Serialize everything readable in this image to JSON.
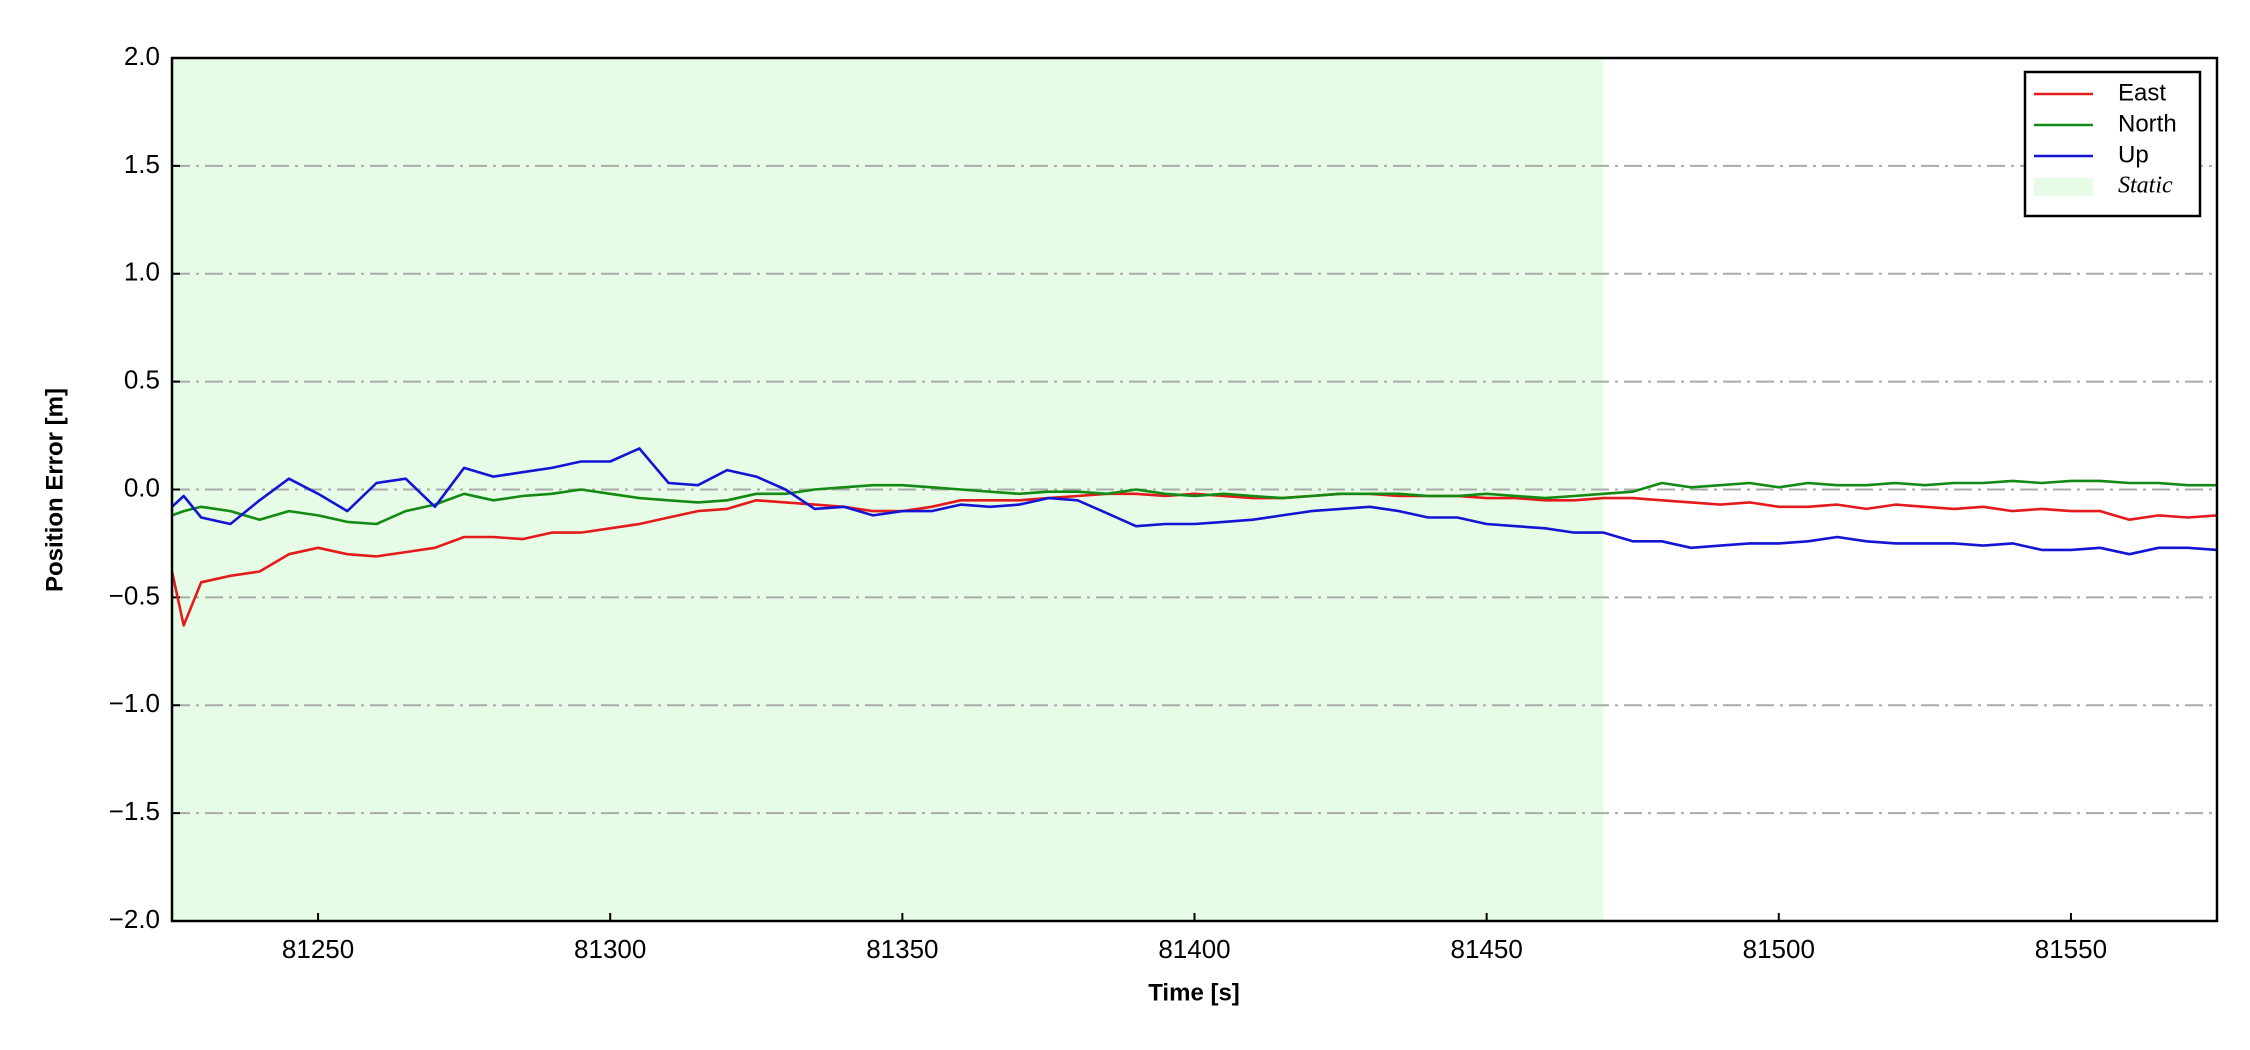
{
  "chart_data": {
    "type": "line",
    "xlabel": "Time [s]",
    "ylabel": "Position Error [m]",
    "xlim": [
      81225,
      81575
    ],
    "xticks": [
      81250,
      81300,
      81350,
      81400,
      81450,
      81500,
      81550
    ],
    "ylim": [
      -2.0,
      2.0
    ],
    "yticks": [
      {
        "value": -2.0,
        "label": "−2.0"
      },
      {
        "value": -1.5,
        "label": "−1.5"
      },
      {
        "value": -1.0,
        "label": "−1.0"
      },
      {
        "value": -0.5,
        "label": "−0.5"
      },
      {
        "value": 0.0,
        "label": "0.0"
      },
      {
        "value": 0.5,
        "label": "0.5"
      },
      {
        "value": 1.0,
        "label": "1.0"
      },
      {
        "value": 1.5,
        "label": "1.5"
      },
      {
        "value": 2.0,
        "label": "2.0"
      }
    ],
    "grid": true,
    "legend": "upper right",
    "static_region": {
      "label": "Static",
      "xrange": [
        81225,
        81470
      ],
      "color": "#e6fce6"
    },
    "x": [
      81225,
      81227,
      81230,
      81235,
      81240,
      81245,
      81250,
      81255,
      81260,
      81265,
      81270,
      81275,
      81280,
      81285,
      81290,
      81295,
      81300,
      81305,
      81310,
      81315,
      81320,
      81325,
      81330,
      81335,
      81340,
      81345,
      81350,
      81355,
      81360,
      81365,
      81370,
      81375,
      81380,
      81385,
      81390,
      81395,
      81400,
      81405,
      81410,
      81415,
      81420,
      81425,
      81430,
      81435,
      81440,
      81445,
      81450,
      81455,
      81460,
      81465,
      81470,
      81475,
      81480,
      81485,
      81490,
      81495,
      81500,
      81505,
      81510,
      81515,
      81520,
      81525,
      81530,
      81535,
      81540,
      81545,
      81550,
      81555,
      81560,
      81565,
      81570,
      81575
    ],
    "series": [
      {
        "name": "East",
        "color": "#e41a1c",
        "values": [
          -0.38,
          -0.63,
          -0.43,
          -0.4,
          -0.38,
          -0.3,
          -0.27,
          -0.3,
          -0.31,
          -0.29,
          -0.27,
          -0.22,
          -0.22,
          -0.23,
          -0.2,
          -0.2,
          -0.18,
          -0.16,
          -0.13,
          -0.1,
          -0.09,
          -0.05,
          -0.06,
          -0.07,
          -0.08,
          -0.1,
          -0.1,
          -0.08,
          -0.05,
          -0.05,
          -0.05,
          -0.04,
          -0.03,
          -0.02,
          -0.02,
          -0.03,
          -0.02,
          -0.03,
          -0.04,
          -0.04,
          -0.03,
          -0.02,
          -0.02,
          -0.03,
          -0.03,
          -0.03,
          -0.04,
          -0.04,
          -0.05,
          -0.05,
          -0.04,
          -0.04,
          -0.05,
          -0.06,
          -0.07,
          -0.06,
          -0.08,
          -0.08,
          -0.07,
          -0.09,
          -0.07,
          -0.08,
          -0.09,
          -0.08,
          -0.1,
          -0.09,
          -0.1,
          -0.1,
          -0.14,
          -0.12,
          -0.13,
          -0.12
        ]
      },
      {
        "name": "North",
        "color": "#138a13",
        "values": [
          -0.12,
          -0.1,
          -0.08,
          -0.1,
          -0.14,
          -0.1,
          -0.12,
          -0.15,
          -0.16,
          -0.1,
          -0.07,
          -0.02,
          -0.05,
          -0.03,
          -0.02,
          0.0,
          -0.02,
          -0.04,
          -0.05,
          -0.06,
          -0.05,
          -0.02,
          -0.02,
          0.0,
          0.01,
          0.02,
          0.02,
          0.01,
          0.0,
          -0.01,
          -0.02,
          -0.01,
          -0.01,
          -0.02,
          0.0,
          -0.02,
          -0.03,
          -0.02,
          -0.03,
          -0.04,
          -0.03,
          -0.02,
          -0.02,
          -0.02,
          -0.03,
          -0.03,
          -0.02,
          -0.03,
          -0.04,
          -0.03,
          -0.02,
          -0.01,
          0.03,
          0.01,
          0.02,
          0.03,
          0.01,
          0.03,
          0.02,
          0.02,
          0.03,
          0.02,
          0.03,
          0.03,
          0.04,
          0.03,
          0.04,
          0.04,
          0.03,
          0.03,
          0.02,
          0.02
        ]
      },
      {
        "name": "Up",
        "color": "#1414d4",
        "values": [
          -0.08,
          -0.03,
          -0.13,
          -0.16,
          -0.05,
          0.05,
          -0.02,
          -0.1,
          0.03,
          0.05,
          -0.08,
          0.1,
          0.06,
          0.08,
          0.1,
          0.13,
          0.13,
          0.19,
          0.03,
          0.02,
          0.09,
          0.06,
          0.0,
          -0.09,
          -0.08,
          -0.12,
          -0.1,
          -0.1,
          -0.07,
          -0.08,
          -0.07,
          -0.04,
          -0.05,
          -0.11,
          -0.17,
          -0.16,
          -0.16,
          -0.15,
          -0.14,
          -0.12,
          -0.1,
          -0.09,
          -0.08,
          -0.1,
          -0.13,
          -0.13,
          -0.16,
          -0.17,
          -0.18,
          -0.2,
          -0.2,
          -0.24,
          -0.24,
          -0.27,
          -0.26,
          -0.25,
          -0.25,
          -0.24,
          -0.22,
          -0.24,
          -0.25,
          -0.25,
          -0.25,
          -0.26,
          -0.25,
          -0.28,
          -0.28,
          -0.27,
          -0.3,
          -0.27,
          -0.27,
          -0.28
        ]
      }
    ]
  }
}
